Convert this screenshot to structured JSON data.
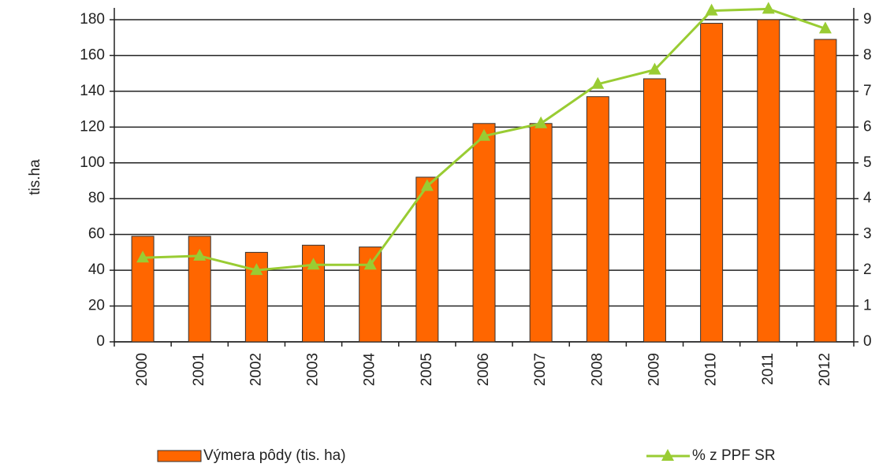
{
  "chart_data": {
    "type": "bar_line",
    "categories": [
      "2000",
      "2001",
      "2002",
      "2003",
      "2004",
      "2005",
      "2006",
      "2007",
      "2008",
      "2009",
      "2010",
      "2011",
      "2012"
    ],
    "series": [
      {
        "name": "Výmera pôdy (tis. ha)",
        "type": "bar",
        "color": "#ff6600",
        "axis": "y",
        "values": [
          59,
          59,
          50,
          54,
          53,
          92,
          122,
          122,
          137,
          147,
          178,
          180,
          169
        ]
      },
      {
        "name": "% z PPF SR",
        "type": "line",
        "color": "#99cc33",
        "axis": "y2",
        "values": [
          2.35,
          2.4,
          2.0,
          2.15,
          2.15,
          4.35,
          5.75,
          6.1,
          7.2,
          7.6,
          9.25,
          9.3,
          8.75
        ]
      }
    ],
    "y_label": "tis.ha",
    "ylim": [
      0,
      180
    ],
    "yticks": [
      0,
      20,
      40,
      60,
      80,
      100,
      120,
      140,
      160,
      180
    ],
    "y2lim": [
      0,
      9
    ],
    "y2ticks": [
      0,
      1,
      2,
      3,
      4,
      5,
      6,
      7,
      8,
      9
    ],
    "grid": true,
    "legend": "bottom"
  }
}
